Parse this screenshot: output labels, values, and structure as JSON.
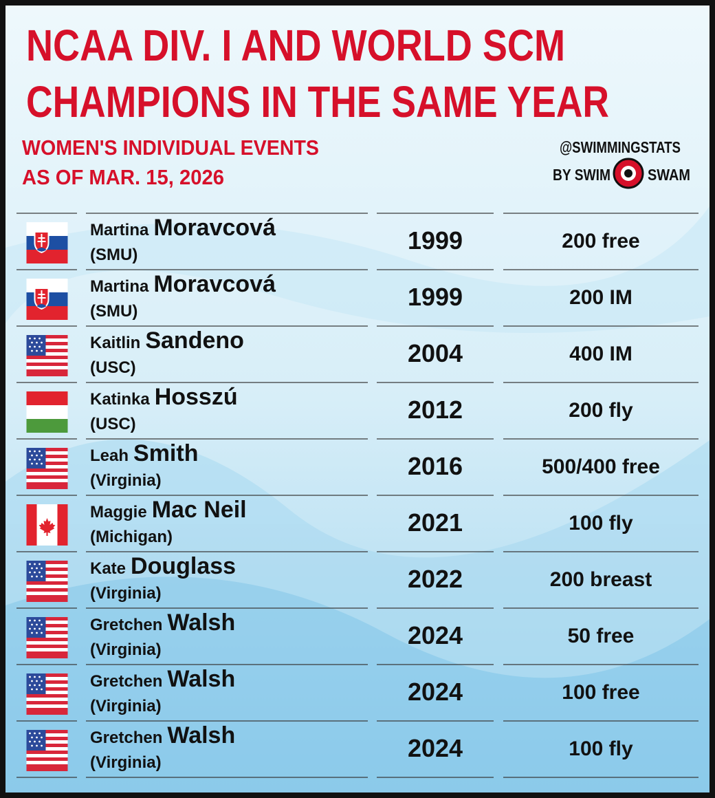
{
  "header": {
    "title": [
      "NCAA DIV. I AND WORLD SCM",
      "CHAMPIONS IN THE SAME YEAR"
    ],
    "subtitle": [
      "WOMEN'S INDIVIDUAL EVENTS",
      "AS OF MAR. 15, 2026"
    ],
    "brand": {
      "handle": "@SWIMMINGSTATS",
      "left": "BY SWIM",
      "right": "SWAM"
    }
  },
  "table": {
    "rows": [
      {
        "first": "Martina",
        "last": "Moravcová",
        "school": "(SMU)",
        "year": 1999,
        "event": "200 free"
      },
      {
        "first": "Martina",
        "last": "Moravcová",
        "school": "(SMU)",
        "year": 1999,
        "event": "200 IM"
      },
      {
        "first": "Kaitlin",
        "last": "Sandeno",
        "school": "(USC)",
        "year": 2004,
        "event": "400 IM"
      },
      {
        "first": "Katinka",
        "last": "Hosszú",
        "school": "(USC)",
        "year": 2012,
        "event": "200 fly"
      },
      {
        "first": "Leah",
        "last": "Smith",
        "school": "(Virginia)",
        "year": 2016,
        "event": "500/400 free"
      },
      {
        "first": "Maggie",
        "last": "Mac Neil",
        "school": "(Michigan)",
        "year": 2021,
        "event": "100 fly"
      },
      {
        "first": "Kate",
        "last": "Douglass",
        "school": "(Virginia)",
        "year": 2022,
        "event": "200 breast"
      },
      {
        "first": "Gretchen",
        "last": "Walsh",
        "school": "(Virginia)",
        "year": 2024,
        "event": "50 free"
      },
      {
        "first": "Gretchen",
        "last": "Walsh",
        "school": "(Virginia)",
        "year": 2024,
        "event": "100 free"
      },
      {
        "first": "Gretchen",
        "last": "Walsh",
        "school": "(Virginia)",
        "year": 2024,
        "event": "100 fly"
      }
    ]
  }
}
